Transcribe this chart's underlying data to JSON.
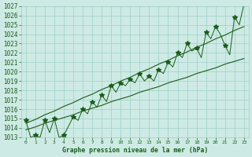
{
  "title": "Graphe pression niveau de la mer (hPa)",
  "x_hours": [
    0,
    1,
    2,
    3,
    4,
    5,
    6,
    7,
    8,
    9,
    10,
    11,
    12,
    13,
    14,
    15,
    16,
    17,
    18,
    19,
    20,
    21,
    22,
    23
  ],
  "pressure_peak": [
    1014.8,
    1013.2,
    1014.8,
    1015.0,
    1013.2,
    1015.2,
    1016.0,
    1016.8,
    1017.5,
    1018.5,
    1018.8,
    1019.2,
    1019.8,
    1019.5,
    1020.2,
    1021.0,
    1022.0,
    1023.0,
    1022.5,
    1024.2,
    1024.8,
    1022.8,
    1025.8,
    1027.2
  ],
  "pressure_dip": [
    1013.0,
    1013.0,
    1013.5,
    1013.0,
    1014.2,
    1014.8,
    1015.5,
    1016.2,
    1016.8,
    1017.8,
    1018.5,
    1018.8,
    1019.0,
    1019.0,
    1019.8,
    1020.5,
    1021.5,
    1022.2,
    1021.5,
    1023.5,
    1024.0,
    1021.8,
    1025.0,
    1025.5
  ],
  "trend_lower": [
    1013.8,
    1014.1,
    1014.5,
    1014.8,
    1015.1,
    1015.4,
    1015.8,
    1016.1,
    1016.4,
    1016.8,
    1017.1,
    1017.4,
    1017.8,
    1018.1,
    1018.4,
    1018.8,
    1019.1,
    1019.4,
    1019.8,
    1020.1,
    1020.4,
    1020.8,
    1021.1,
    1021.4
  ],
  "trend_upper": [
    1014.5,
    1014.9,
    1015.4,
    1015.8,
    1016.3,
    1016.7,
    1017.2,
    1017.6,
    1018.1,
    1018.5,
    1019.0,
    1019.4,
    1019.9,
    1020.3,
    1020.8,
    1021.2,
    1021.7,
    1022.1,
    1022.6,
    1023.0,
    1023.5,
    1023.9,
    1024.4,
    1024.8
  ],
  "ylim_min": 1013,
  "ylim_max": 1027,
  "yticks": [
    1013,
    1014,
    1015,
    1016,
    1017,
    1018,
    1019,
    1020,
    1021,
    1022,
    1023,
    1024,
    1025,
    1026,
    1027
  ],
  "bg_color": "#ceeae4",
  "grid_color": "#9ecfc7",
  "line_color": "#1a5c1a",
  "font_color": "#1a5c1a"
}
